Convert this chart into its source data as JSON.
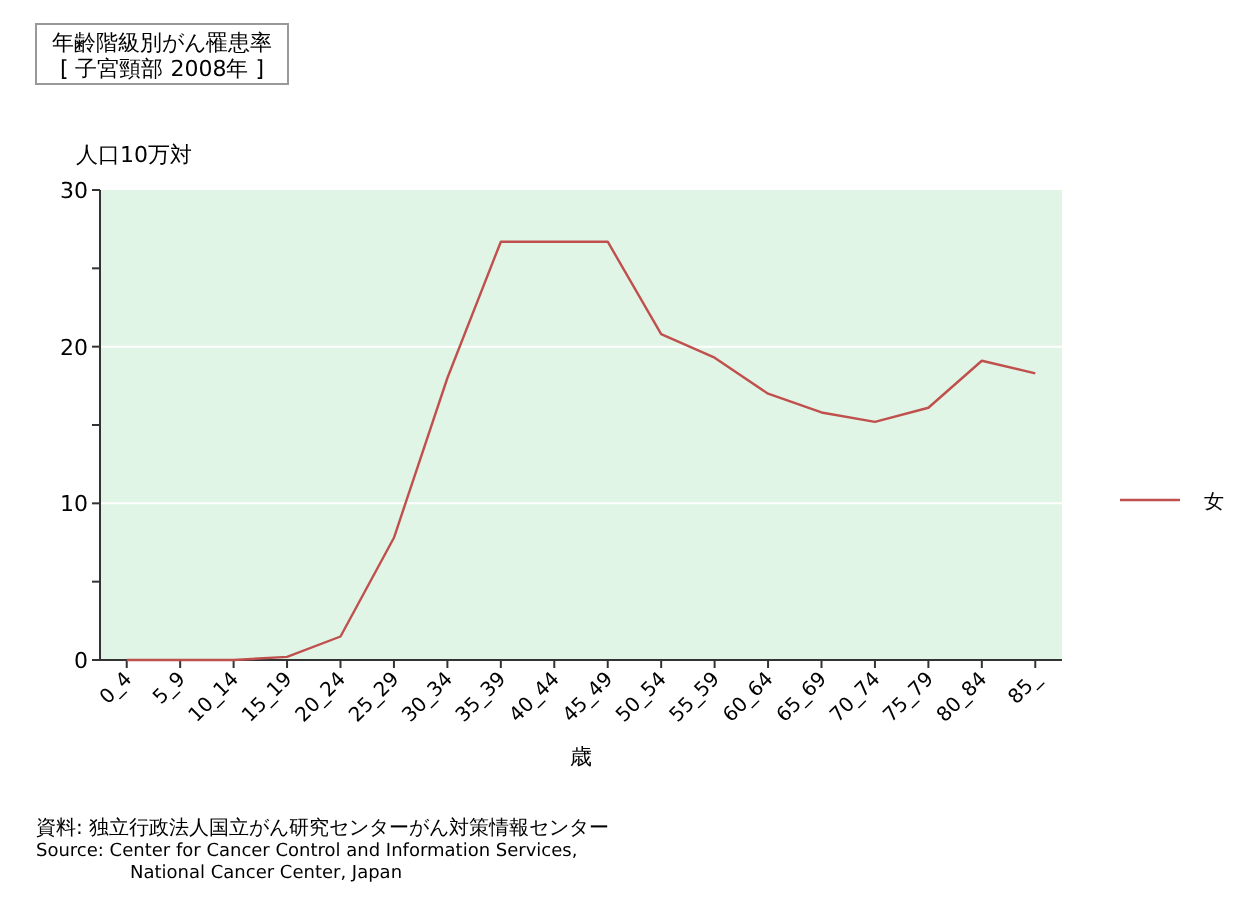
{
  "chart_data": {
    "type": "line",
    "title": "年齢階級別がん罹患率",
    "subtitle": "[ 子宮頸部 2008年 ]",
    "xlabel": "歳",
    "ylabel": "人口10万対",
    "categories": [
      "0_4",
      "5_9",
      "10_14",
      "15_19",
      "20_24",
      "25_29",
      "30_34",
      "35_39",
      "40_44",
      "45_49",
      "50_54",
      "55_59",
      "60_64",
      "65_69",
      "70_74",
      "75_79",
      "80_84",
      "85_"
    ],
    "series": [
      {
        "name": "女",
        "color": "#c0504d",
        "values": [
          0,
          0,
          0,
          0.2,
          1.5,
          7.8,
          18,
          26.7,
          26.7,
          26.7,
          20.8,
          19.3,
          17,
          15.8,
          15.2,
          16.1,
          19.1,
          18.3
        ]
      }
    ],
    "ylim": [
      0,
      30
    ],
    "yticks": [
      0,
      {
        "value": 5,
        "label": null
      },
      10,
      {
        "value": 15,
        "label": null
      },
      20,
      {
        "value": 25,
        "label": null
      },
      30
    ],
    "grid": "y",
    "legend": "right",
    "marker": "none",
    "line_style": "solid",
    "annotations": [
      "資料: 独立行政法人国立がん研究センターがん対策情報センター",
      "Source:  Center for Cancer Control and Information Services,",
      "National Cancer Center, Japan"
    ]
  }
}
